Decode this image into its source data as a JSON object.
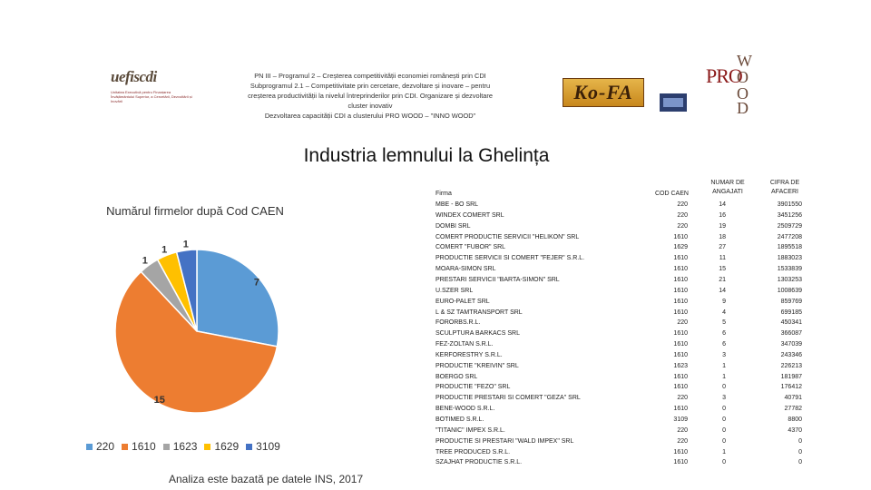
{
  "header": {
    "logo_left_brand": "uefiscdi",
    "logo_left_sub": "Unitatea Executivă pentru Finanțarea Învățământului Superior, a Cercetării, Dezvoltării și Inovării",
    "lines": [
      "PN III – Programul 2 – Creșterea competitivității economiei românești prin CDI",
      "Subprogramul 2.1 – Competitivitate prin cercetare, dezvoltare și inovare – pentru",
      "creșterea productivității la nivelul întreprinderilor prin CDI. Organizare și dezvoltare",
      "cluster inovativ",
      "Dezvoltarea capacității CDI a clusterului PRO WOOD – \"INNO WOOD\""
    ],
    "logo_kofa": "Ko-FA",
    "logo_prowood": {
      "w": "W",
      "pro": "PRO",
      "o1": "O",
      "o2": "O",
      "d": "D"
    }
  },
  "title": "Industria lemnului la Ghelința",
  "chart_data": {
    "type": "pie",
    "title": "Numărul firmelor după Cod CAEN",
    "categories": [
      "220",
      "1610",
      "1623",
      "1629",
      "3109"
    ],
    "values": [
      7,
      15,
      1,
      1,
      1
    ],
    "colors": [
      "#5b9bd5",
      "#ed7d31",
      "#a5a5a5",
      "#ffc000",
      "#4472c4"
    ],
    "data_labels": [
      "7",
      "15",
      "1",
      "1",
      "1"
    ],
    "legend_position": "bottom"
  },
  "footnote": "Analiza este bazată pe datele INS, 2017",
  "table": {
    "headers": {
      "firm": "Firma",
      "caen": "COD CAEN",
      "employees_line1": "NUMAR DE",
      "employees_line2": "ANGAJATI",
      "revenue_line1": "CIFRA DE",
      "revenue_line2": "AFACERI"
    },
    "rows": [
      {
        "firm": "MBE - BO SRL",
        "caen": "220",
        "employees": "14",
        "revenue": "3901550"
      },
      {
        "firm": "WINDEX COMERT SRL",
        "caen": "220",
        "employees": "16",
        "revenue": "3451256"
      },
      {
        "firm": "DOMBI SRL",
        "caen": "220",
        "employees": "19",
        "revenue": "2509729"
      },
      {
        "firm": "COMERT PRODUCTIE SERVICII \"HELIKON\" SRL",
        "caen": "1610",
        "employees": "18",
        "revenue": "2477208"
      },
      {
        "firm": "COMERT \"FUBOR\" SRL",
        "caen": "1629",
        "employees": "27",
        "revenue": "1895518"
      },
      {
        "firm": "PRODUCTIE SERVICII SI COMERT \"FEJER\" S.R.L.",
        "caen": "1610",
        "employees": "11",
        "revenue": "1883023"
      },
      {
        "firm": "MOARA-SIMON SRL",
        "caen": "1610",
        "employees": "15",
        "revenue": "1533839"
      },
      {
        "firm": "PRESTARI SERVICII \"BARTA-SIMON\" SRL",
        "caen": "1610",
        "employees": "21",
        "revenue": "1303253"
      },
      {
        "firm": "U.SZER SRL",
        "caen": "1610",
        "employees": "14",
        "revenue": "1008639"
      },
      {
        "firm": "EURO-PALET SRL",
        "caen": "1610",
        "employees": "9",
        "revenue": "859769"
      },
      {
        "firm": "L & SZ TAMTRANSPORT SRL",
        "caen": "1610",
        "employees": "4",
        "revenue": "699185"
      },
      {
        "firm": "FORORBS.R.L.",
        "caen": "220",
        "employees": "5",
        "revenue": "450341"
      },
      {
        "firm": "SCULPTURA BARKACS SRL",
        "caen": "1610",
        "employees": "6",
        "revenue": "366087"
      },
      {
        "firm": "FEZ-ZOLTAN S.R.L.",
        "caen": "1610",
        "employees": "6",
        "revenue": "347039"
      },
      {
        "firm": "KERFORESTRY S.R.L.",
        "caen": "1610",
        "employees": "3",
        "revenue": "243346"
      },
      {
        "firm": "PRODUCTIE \"KREIVIN\" SRL",
        "caen": "1623",
        "employees": "1",
        "revenue": "226213"
      },
      {
        "firm": "BOERGO SRL",
        "caen": "1610",
        "employees": "1",
        "revenue": "181987"
      },
      {
        "firm": "PRODUCTIE \"FEZO\" SRL",
        "caen": "1610",
        "employees": "0",
        "revenue": "176412"
      },
      {
        "firm": "PRODUCTIE PRESTARI SI COMERT \"GEZA\" SRL",
        "caen": "220",
        "employees": "3",
        "revenue": "40791"
      },
      {
        "firm": "BENE-WOOD S.R.L.",
        "caen": "1610",
        "employees": "0",
        "revenue": "27782"
      },
      {
        "firm": "BOTIMED S.R.L.",
        "caen": "3109",
        "employees": "0",
        "revenue": "8800"
      },
      {
        "firm": "\"TITANIC\" IMPEX S.R.L.",
        "caen": "220",
        "employees": "0",
        "revenue": "4370"
      },
      {
        "firm": "PRODUCTIE SI PRESTARI \"WALD IMPEX\" SRL",
        "caen": "220",
        "employees": "0",
        "revenue": "0"
      },
      {
        "firm": "TREE PRODUCED S.R.L.",
        "caen": "1610",
        "employees": "1",
        "revenue": "0"
      },
      {
        "firm": "SZAJHAT PRODUCTIE S.R.L.",
        "caen": "1610",
        "employees": "0",
        "revenue": "0"
      }
    ]
  }
}
